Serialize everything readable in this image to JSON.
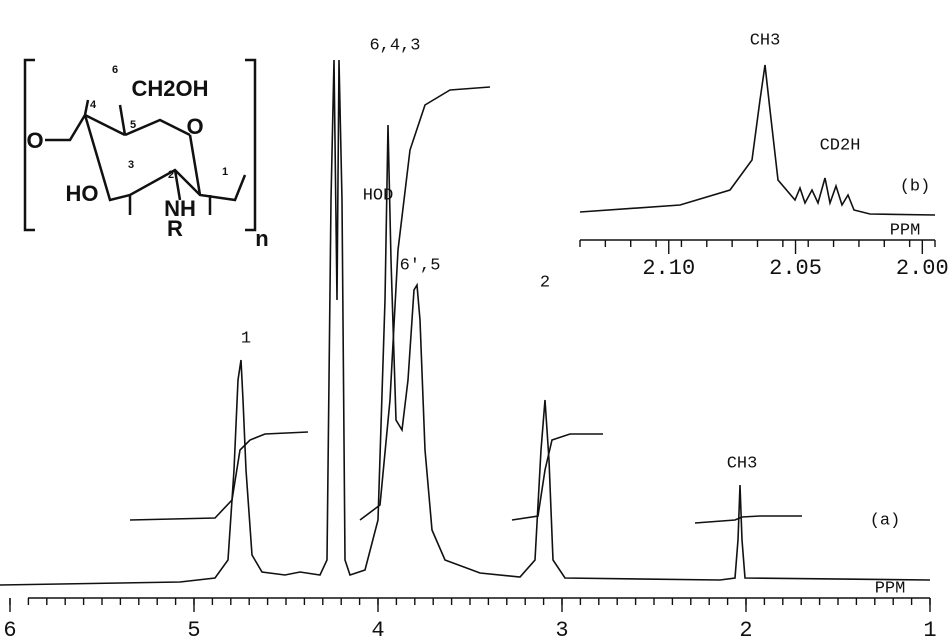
{
  "main": {
    "x_label": "PPM",
    "xlim": [
      6,
      1
    ],
    "xticks": [
      6,
      5,
      4,
      3,
      2,
      1
    ],
    "minor_step": 0.1,
    "panel_label": "(a)",
    "peak_labels": [
      "1",
      "HOD",
      "6,4,3",
      "6',5",
      "2",
      "CH3"
    ]
  },
  "inset": {
    "x_label": "PPM",
    "xlim": [
      2.135,
      1.995
    ],
    "xticks": [
      {
        "value": 2.1,
        "label": "2.10"
      },
      {
        "value": 2.05,
        "label": "2.05"
      },
      {
        "value": 2.0,
        "label": "2.00"
      }
    ],
    "minor_step": 0.01,
    "panel_label": "(b)",
    "peak_labels": [
      "CH3",
      "CD2H"
    ]
  },
  "structure": {
    "atoms": [
      "O",
      "CH2OH",
      "O",
      "HO",
      "NH",
      "R",
      "n"
    ],
    "positions": [
      "1",
      "2",
      "3",
      "4",
      "5",
      "6"
    ]
  }
}
